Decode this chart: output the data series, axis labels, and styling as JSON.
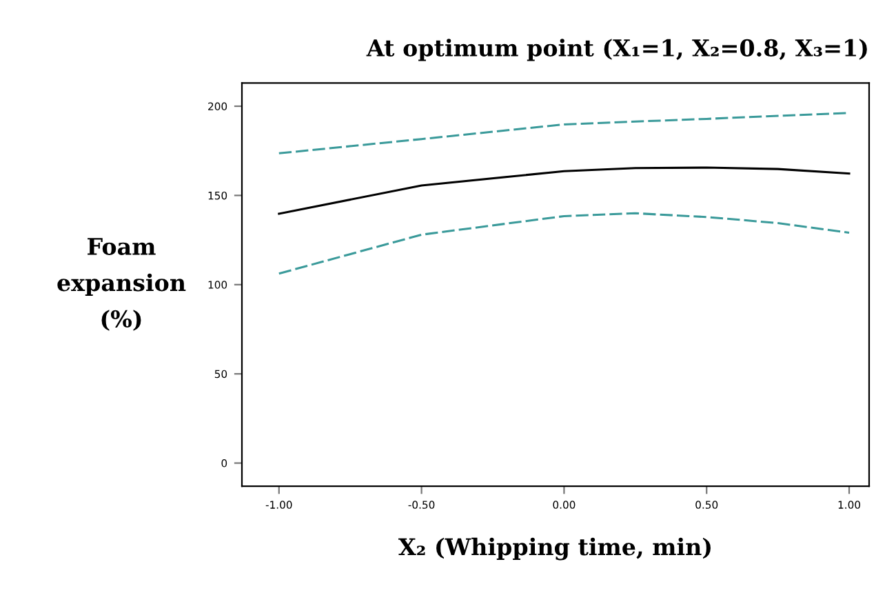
{
  "chart_data": {
    "type": "line",
    "title": "At optimum point (X₁=1, X₂=0.8, X₃=1)",
    "xlabel": "X₂ (Whipping time, min)",
    "ylabel": "Foam\nexpansion\n(%)",
    "x": [
      -1,
      -0.5,
      0,
      0.25,
      0.5,
      0.75,
      1
    ],
    "series": [
      {
        "color": "#3a9a9a",
        "line_style": "dashed",
        "values": [
          173.6,
          181.6,
          189.8,
          191.4,
          192.9,
          194.6,
          196.2
        ]
      },
      {
        "color": "#000000",
        "line_style": "solid",
        "values": [
          139.7,
          155.6,
          163.6,
          165.3,
          165.6,
          164.8,
          162.3
        ]
      },
      {
        "color": "#3a9a9a",
        "line_style": "dashed",
        "values": [
          106.2,
          128,
          138.4,
          140,
          137.9,
          134.5,
          129.1
        ]
      }
    ],
    "xlim": [
      -1.13,
      1.07
    ],
    "ylim": [
      -13,
      213
    ],
    "xticks": [
      {
        "value": -1,
        "label": "-1.00"
      },
      {
        "value": -0.5,
        "label": "-0.50"
      },
      {
        "value": 0,
        "label": "0.00"
      },
      {
        "value": 0.5,
        "label": "0.50"
      },
      {
        "value": 1,
        "label": "1.00"
      }
    ],
    "yticks": [
      0,
      50,
      100,
      150,
      200
    ],
    "grid": false,
    "marker": "none"
  }
}
